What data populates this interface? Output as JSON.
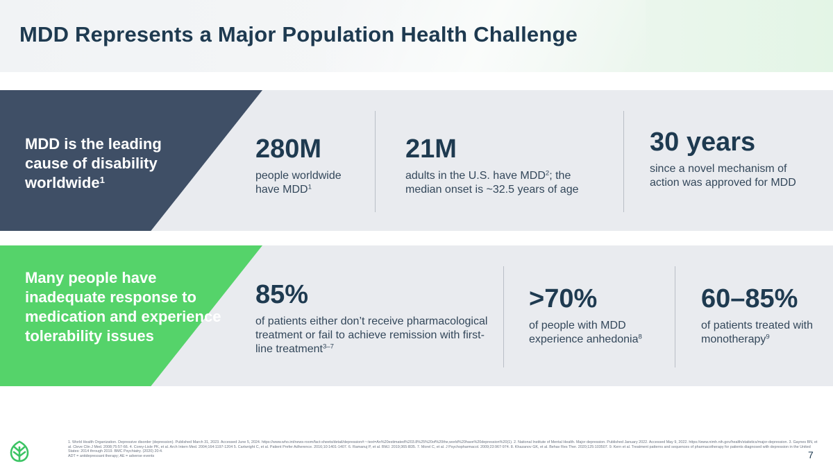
{
  "title": "MDD Represents a Major Population Health Challenge",
  "row1": {
    "lead": {
      "text": "MDD is the leading cause of disability worldwide",
      "sup": "1"
    },
    "stats": [
      {
        "value": "280M",
        "text": "people worldwide have MDD",
        "sup": "1",
        "tail": ""
      },
      {
        "value": "21M",
        "text": "adults in the U.S. have MDD",
        "sup": "2",
        "tail": "; the median onset is ~32.5 years of age"
      },
      {
        "value": "30 years",
        "text": "since a novel mechanism of action was approved for MDD",
        "sup": "",
        "tail": ""
      }
    ]
  },
  "row2": {
    "lead": {
      "text": "Many people have inadequate response to medication and experience tolerability issues"
    },
    "stats": [
      {
        "value": "85%",
        "text": "of patients either don’t receive pharmacological treatment or fail to achieve remission with first-line treatment",
        "sup": "3–7",
        "tail": ""
      },
      {
        "value": ">70%",
        "text": "of people with MDD experience anhedonia",
        "sup": "8",
        "tail": ""
      },
      {
        "value": "60–85%",
        "text": "of patients treated with monotherapy",
        "sup": "9",
        "tail": ""
      }
    ]
  },
  "footnotes": {
    "references": "1. World Health Organization. Depressive disorder (depression). Published March 31, 2023. Accessed June 5, 2024. https://www.who.int/news-room/fact-sheets/detail/depression#:~:text=An%20estimated%203.8%25%20of%20the,world%20have%20depression%20(1). 2. National Institute of Mental Health. Major depression. Published January 2022. Accessed May 9, 2022. https://www.nimh.nih.gov/health/statistics/major-depression. 3. Gaynes BN, et al. Cleve Clin J Med. 2008;75:57-66. 4. Corey-Lisle PK, et al. Arch Intern Med. 2004;164:1197-1204 5. Cartwright C, et al. Patient Prefer Adherence. 2016;10:1401-1407. 6. Ramanuj P, et al. BMJ. 2019;365:l835. 7. Morel C, et al. J Psychopharmacol. 2009;23:967-974. 8. Khazanov GK, et al. Behav Res Ther. 2020;125:103507. 9. Kern et al. Treatment patterns and sequences of pharmacotherapy for patients diagnosed with depression in the United States: 2014 through 2019. BMC Psychiatry. (2020) 20:4.",
    "abbreviations": "ADT = antidepressant therapy; AE = adverse events"
  },
  "page_number": "7",
  "colors": {
    "navy": "#1e3a50",
    "slate_panel": "#3f4f66",
    "green_panel": "#55d36a",
    "row_bg": "#e9ebef",
    "logo_green": "#3cc464"
  },
  "logo": {
    "icon": "brand-leaf-icon"
  }
}
